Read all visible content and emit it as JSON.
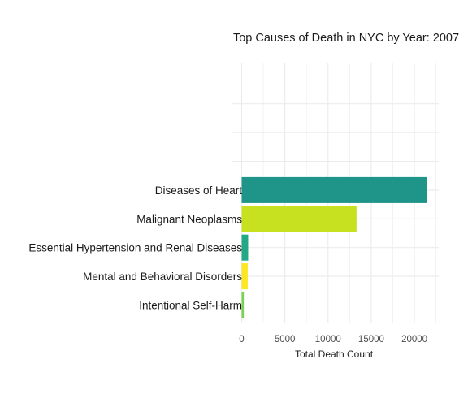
{
  "chart_data": {
    "type": "bar",
    "orientation": "horizontal",
    "title": "Top Causes of Death in NYC by Year: 2007",
    "xlabel": "Total Death Count",
    "ylabel": "",
    "categories": [
      "Intentional Self-Harm",
      "Mental and Behavioral Disorders",
      "Essential Hypertension and Renal Diseases",
      "Malignant Neoplasms",
      "Diseases of Heart"
    ],
    "values": [
      250,
      700,
      750,
      13300,
      21500
    ],
    "colors": [
      "#7AD151",
      "#FDE725",
      "#22A884",
      "#C7E020",
      "#1F9489"
    ],
    "xlim": [
      0,
      22700
    ],
    "x_ticks": [
      0,
      5000,
      10000,
      15000,
      20000
    ],
    "x_tick_labels": [
      "0",
      "5000",
      "10000",
      "15000",
      "20000"
    ],
    "empty_category_slots_above": 3,
    "grid": true,
    "legend": "none",
    "background": "#ffffff",
    "grid_color": "#ebebeb"
  }
}
